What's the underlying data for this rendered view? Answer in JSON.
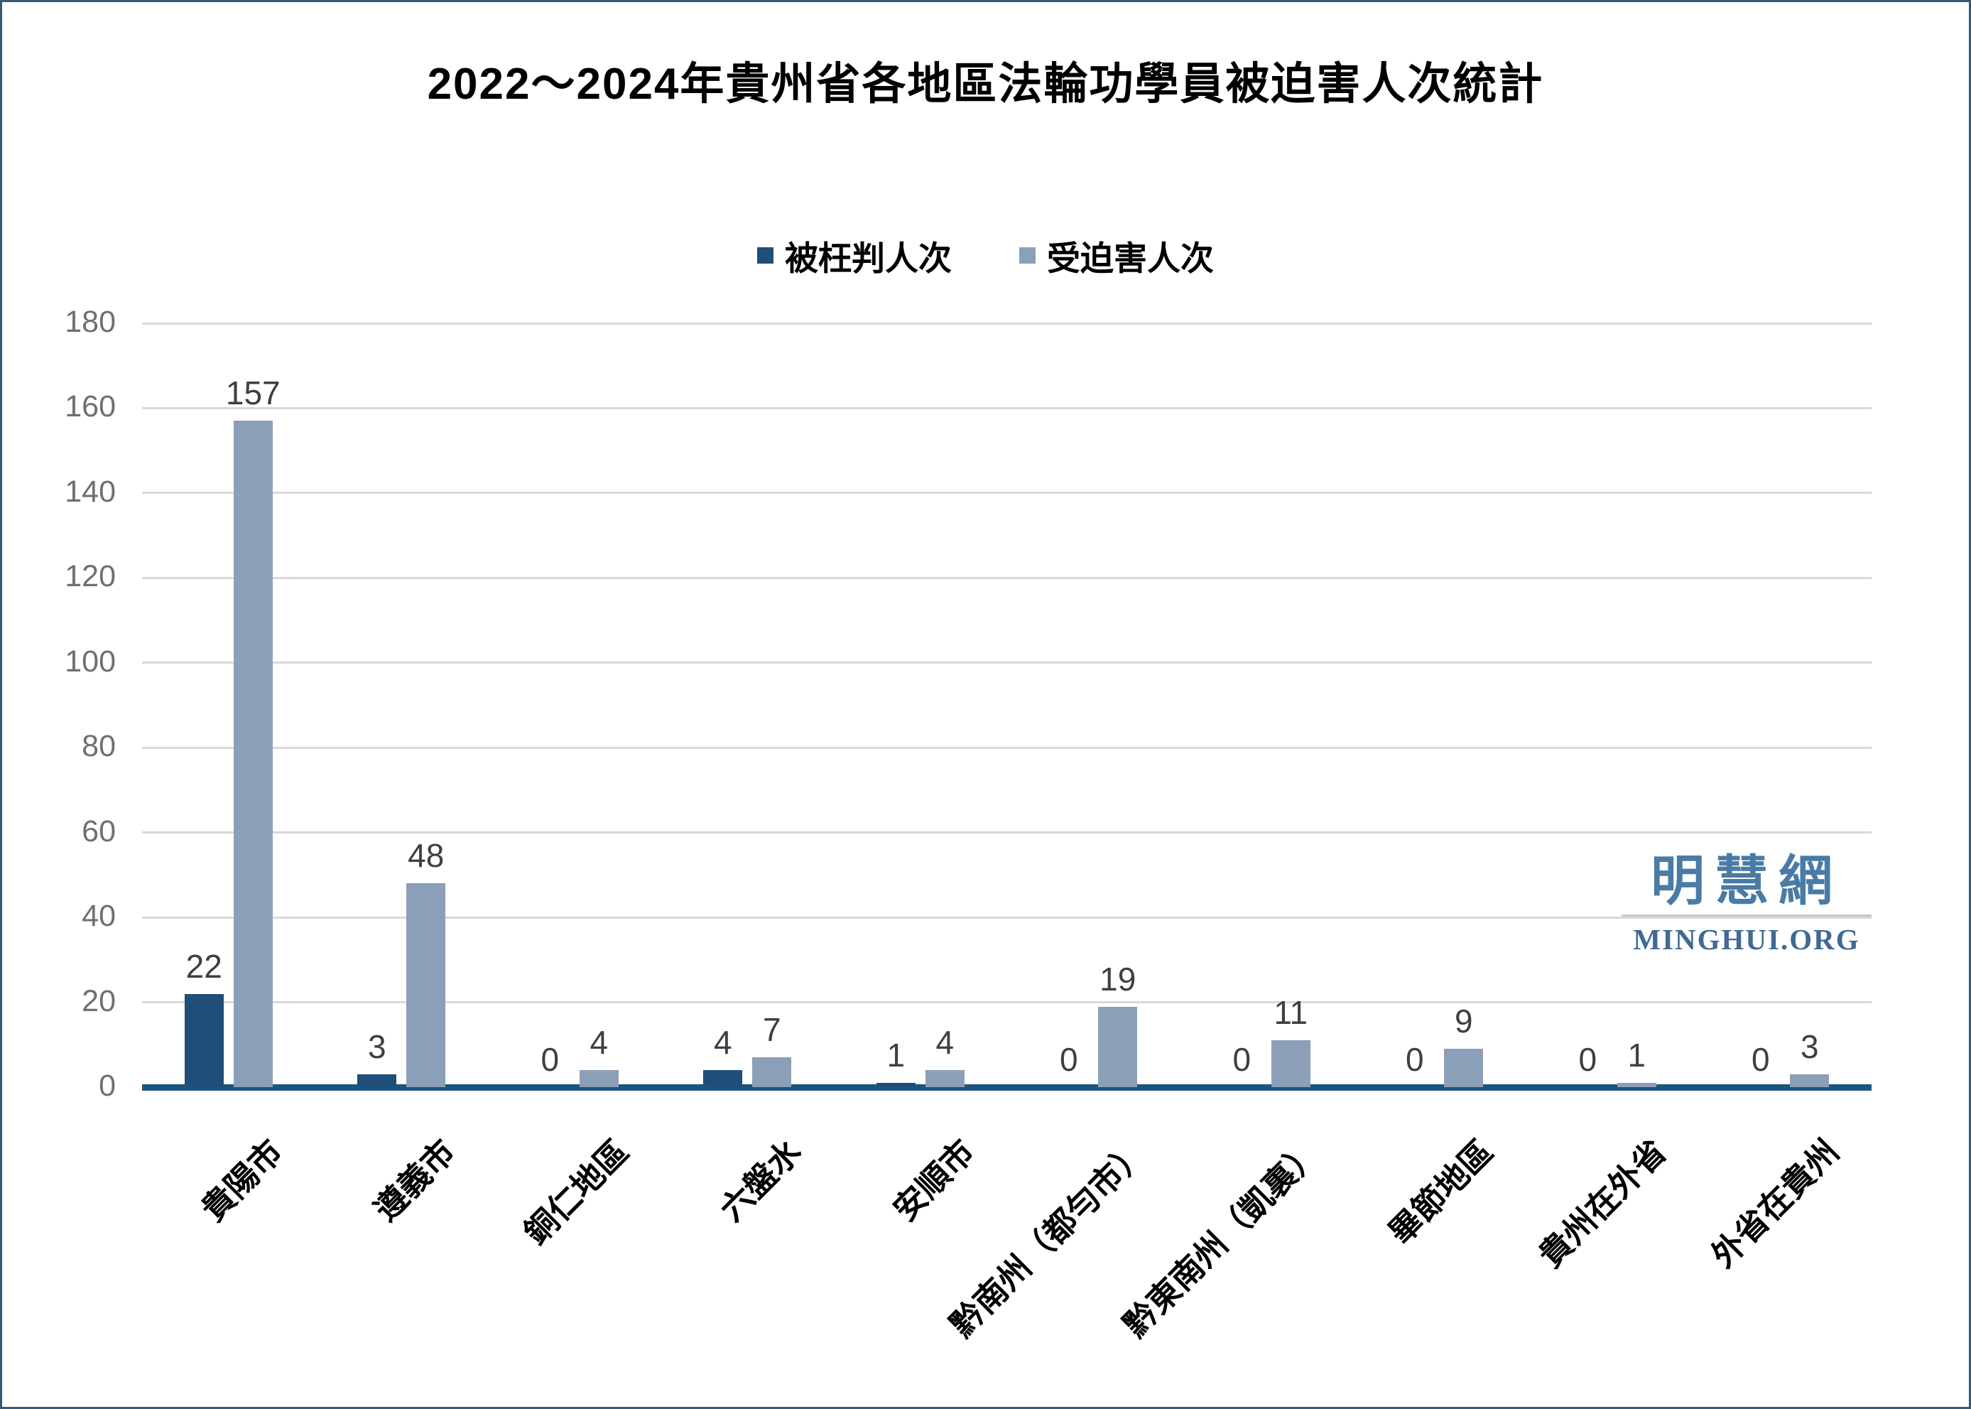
{
  "title": "2022～2024年貴州省各地區法輪功學員被迫害人次統計",
  "legend": {
    "items": [
      {
        "label": "被枉判人次",
        "color": "#1F4E79"
      },
      {
        "label": "受迫害人次",
        "color": "#8C9FB8"
      }
    ]
  },
  "chart_data": {
    "type": "bar",
    "title": "2022～2024年貴州省各地區法輪功學員被迫害人次統計",
    "categories": [
      "貴陽市",
      "遵義市",
      "銅仁地區",
      "六盤水",
      "安順市",
      "黔南州（都勻市）",
      "黔東南州（凱裏）",
      "畢節地區",
      "貴州在外省",
      "外省在貴州"
    ],
    "series": [
      {
        "name": "被枉判人次",
        "color": "#1F4E79",
        "values": [
          22,
          3,
          0,
          4,
          1,
          0,
          0,
          0,
          0,
          0
        ]
      },
      {
        "name": "受迫害人次",
        "color": "#8C9FB8",
        "values": [
          157,
          48,
          4,
          7,
          4,
          19,
          11,
          9,
          1,
          3
        ]
      }
    ],
    "xlabel": "",
    "ylabel": "",
    "ylim": [
      0,
      180
    ],
    "ytick_step": 20,
    "yticks": [
      0,
      20,
      40,
      60,
      80,
      100,
      120,
      140,
      160,
      180
    ],
    "grid": true,
    "legend_position": "top",
    "data_labels": true,
    "x_label_rotation_deg": -45
  },
  "watermark": {
    "cn": "明慧網",
    "en": "MINGHUI.ORG"
  },
  "colors": {
    "series1": "#1F4E79",
    "series2": "#8C9FB8",
    "axis_line": "#1B567E",
    "gridline": "#D9D9D9",
    "ytick_text": "#6F6F6F",
    "data_label_text": "#3F3F3F",
    "frame_border": "#35597B",
    "watermark_cn": "#4A7BA6",
    "watermark_en": "#3F6A94",
    "watermark_divider": "#C8C8C8"
  }
}
